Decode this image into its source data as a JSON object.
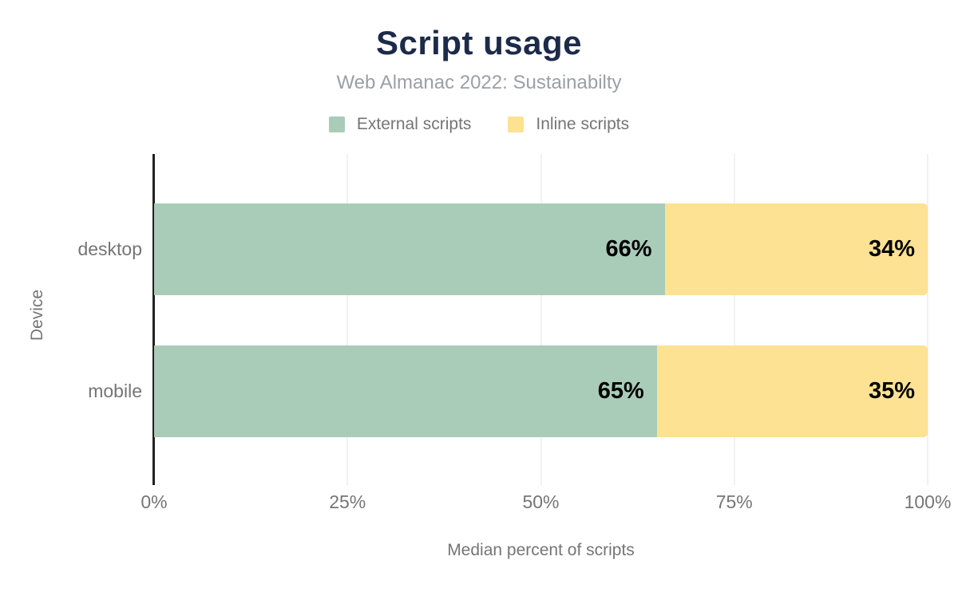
{
  "title": "Script usage",
  "subtitle": "Web Almanac 2022: Sustainabilty",
  "legend": {
    "items": [
      {
        "label": "External scripts",
        "color": "#a9ccb9"
      },
      {
        "label": "Inline scripts",
        "color": "#fde293"
      }
    ]
  },
  "axes": {
    "x_title": "Median percent of scripts",
    "y_title": "Device"
  },
  "colors": {
    "title": "#1c2b49",
    "subtitle_text": "#9aa0a6",
    "axis_text": "#757575",
    "axis_line": "#212121",
    "gridline": "#f1f1f1",
    "series_external": "#a9ccb9",
    "series_inline": "#fde293",
    "data_label": "#000000"
  },
  "chart_data": {
    "type": "bar",
    "orientation": "horizontal",
    "stacked": true,
    "title": "Script usage",
    "subtitle": "Web Almanac 2022: Sustainabilty",
    "xlabel": "Median percent of scripts",
    "ylabel": "Device",
    "categories": [
      "desktop",
      "mobile"
    ],
    "series": [
      {
        "name": "External scripts",
        "color": "#a9ccb9",
        "values": [
          66,
          65
        ],
        "labels": [
          "66%",
          "65%"
        ]
      },
      {
        "name": "Inline scripts",
        "color": "#fde293",
        "values": [
          34,
          35
        ],
        "labels": [
          "34%",
          "35%"
        ]
      }
    ],
    "xlim": [
      0,
      100
    ],
    "xticks": [
      {
        "label": "0%",
        "value": 0
      },
      {
        "label": "25%",
        "value": 25
      },
      {
        "label": "50%",
        "value": 50
      },
      {
        "label": "75%",
        "value": 75
      },
      {
        "label": "100%",
        "value": 100
      }
    ],
    "grid": true,
    "legend_position": "top"
  }
}
